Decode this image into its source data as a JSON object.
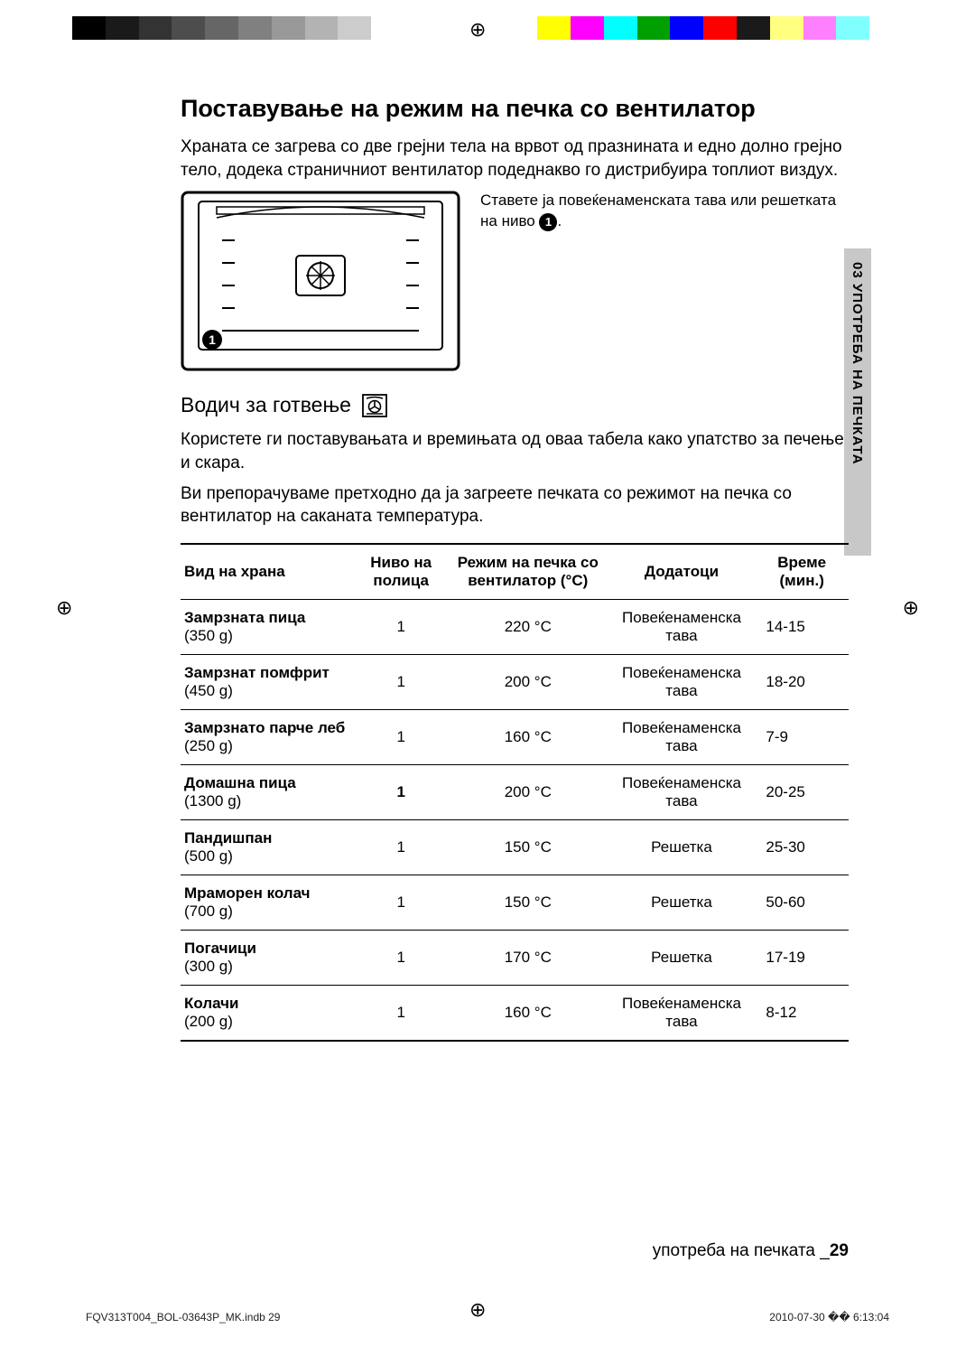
{
  "colorbar": [
    "#000000",
    "#1a1a1a",
    "#333333",
    "#4d4d4d",
    "#666666",
    "#808080",
    "#999999",
    "#b3b3b3",
    "#cccccc",
    "#ffffff",
    "#ffffff",
    "#ffffff",
    "#ffffff",
    "#ffffff",
    "#ffff00",
    "#ff00ff",
    "#00ffff",
    "#00a000",
    "#0000ff",
    "#ff0000",
    "#1a1a1a",
    "#ffff80",
    "#ff80ff",
    "#80ffff",
    "#ffffff"
  ],
  "section_title": "Поставување на режим на печка со вентилатор",
  "intro": "Храната се загрева со две грејни тела на врвот од празнината и едно долно грејно тело, додека страничниот вентилатор подеднакво го дистрибуира топлиот виздух.",
  "oven_caption_prefix": "Ставете ја повеќенаменската тава или решетката на ниво ",
  "oven_caption_level": "1",
  "oven_caption_suffix": ".",
  "guide_title": "Водич за готвење",
  "guide_p1": "Користете ги поставувањата и времињата од оваа табела како упатство за печење и скара.",
  "guide_p2": "Ви препорачуваме претходно да ја загреете печката со режимот на печка со вентилатор на саканата температура.",
  "side_label": "03 УПОТРЕБА НА ПЕЧКАТА",
  "table": {
    "type": "table",
    "columns": [
      "Вид на храна",
      "Ниво на полица",
      "Режим на печка со вентилатор (°C)",
      "Додатоци",
      "Време (мин.)"
    ],
    "col_widths_pct": [
      26,
      14,
      24,
      22,
      14
    ],
    "rows": [
      {
        "food": "Замрзната пица",
        "weight": "(350 g)",
        "level": "1",
        "temp": "220 °C",
        "acc": "Повеќенаменска тава",
        "time": "14-15"
      },
      {
        "food": "Замрзнат помфрит",
        "weight": "(450 g)",
        "level": "1",
        "temp": "200 °C",
        "acc": "Повеќенаменска тава",
        "time": "18-20"
      },
      {
        "food": "Замрзнато парче леб",
        "weight": "(250 g)",
        "level": "1",
        "temp": "160 °C",
        "acc": "Повеќенаменска тава",
        "time": "7-9"
      },
      {
        "food": "Домашна пица",
        "weight": "(1300 g)",
        "level": "1",
        "level_bold": true,
        "temp": "200 °C",
        "acc": "Повеќенаменска тава",
        "time": "20-25"
      },
      {
        "food": "Пандишпан",
        "weight": "(500 g)",
        "level": "1",
        "temp": "150 °C",
        "acc": "Решетка",
        "time": "25-30"
      },
      {
        "food": "Мраморен колач",
        "weight": "(700 g)",
        "level": "1",
        "temp": "150 °C",
        "acc": "Решетка",
        "time": "50-60"
      },
      {
        "food": "Погачици",
        "weight": "(300 g)",
        "level": "1",
        "temp": "170 °C",
        "acc": "Решетка",
        "time": "17-19"
      },
      {
        "food": "Колачи",
        "weight": "(200 g)",
        "level": "1",
        "temp": "160 °C",
        "acc": "Повеќенаменска тава",
        "time": "8-12"
      }
    ],
    "header_bg": "#ffffff",
    "border_color": "#000000"
  },
  "footer_text": "употреба на печката _",
  "footer_page": "29",
  "print_left": "FQV313T004_BOL-03643P_MK.indb   29",
  "print_right": "2010-07-30   �� 6:13:04"
}
